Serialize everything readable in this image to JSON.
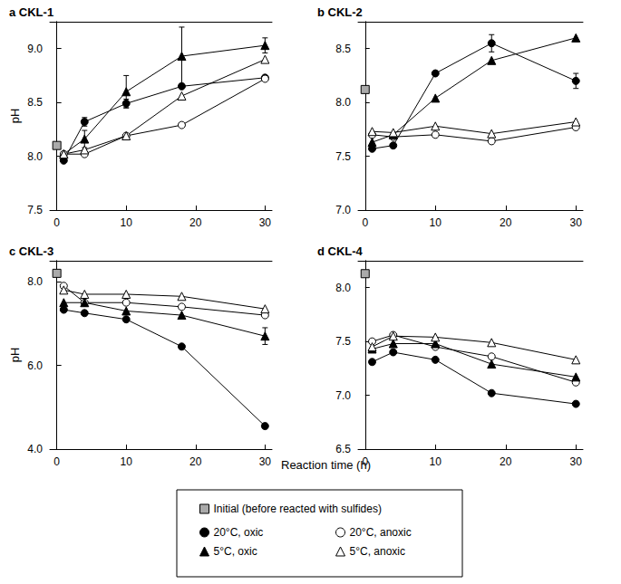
{
  "chart_data": [
    {
      "type": "line",
      "title": "a CKL-1",
      "ylabel": "pH",
      "xlim": [
        -1,
        31
      ],
      "xticks": [
        0,
        10,
        20,
        30
      ],
      "ylim": [
        7.5,
        9.25
      ],
      "yticks": [
        {
          "value": 7.5,
          "label": "7.5"
        },
        {
          "value": 8,
          "label": "8.0"
        },
        {
          "value": 8.5,
          "label": "8.5"
        },
        {
          "value": 9,
          "label": "9.0"
        }
      ],
      "grid": false,
      "series": [
        {
          "name": "Initial (before reacted with sulfides)",
          "color": "#aaaaaa",
          "marker": "square",
          "line_style": "none",
          "x": [
            0
          ],
          "values": [
            8.1
          ]
        },
        {
          "name": "20°C, oxic",
          "color": "#000000",
          "marker": "circle",
          "line_style": "solid",
          "x": [
            1,
            4,
            10,
            18,
            30
          ],
          "values": [
            7.96,
            8.32,
            8.49,
            8.65,
            8.73
          ],
          "errors": [
            null,
            0.04,
            0.04,
            null,
            null
          ]
        },
        {
          "name": "20°C, anoxic",
          "color": "#000000",
          "marker": "circle-open",
          "line_style": "solid",
          "x": [
            1,
            4,
            10,
            18,
            30
          ],
          "values": [
            8.02,
            8.02,
            8.19,
            8.29,
            8.72
          ]
        },
        {
          "name": "5°C, oxic",
          "color": "#000000",
          "marker": "triangle",
          "line_style": "solid",
          "x": [
            1,
            4,
            10,
            18,
            30
          ],
          "values": [
            8.02,
            8.16,
            8.6,
            8.93,
            9.03
          ],
          "errors": [
            null,
            0.08,
            0.15,
            0.27,
            0.07
          ]
        },
        {
          "name": "5°C, anoxic",
          "color": "#000000",
          "marker": "triangle-open",
          "line_style": "solid",
          "x": [
            1,
            4,
            10,
            18,
            30
          ],
          "values": [
            8.02,
            8.06,
            8.19,
            8.56,
            8.9
          ]
        }
      ]
    },
    {
      "type": "line",
      "title": "b CKL-2",
      "xlim": [
        -1,
        31
      ],
      "xticks": [
        0,
        10,
        20,
        30
      ],
      "ylim": [
        7.0,
        8.75
      ],
      "yticks": [
        {
          "value": 7,
          "label": "7.0"
        },
        {
          "value": 7.5,
          "label": "7.5"
        },
        {
          "value": 8,
          "label": "8.0"
        },
        {
          "value": 8.5,
          "label": "8.5"
        }
      ],
      "grid": false,
      "series": [
        {
          "name": "Initial (before reacted with sulfides)",
          "color": "#aaaaaa",
          "marker": "square",
          "line_style": "none",
          "x": [
            0
          ],
          "values": [
            8.12
          ]
        },
        {
          "name": "20°C, oxic",
          "color": "#000000",
          "marker": "circle",
          "line_style": "solid",
          "x": [
            1,
            4,
            10,
            18,
            30
          ],
          "values": [
            7.57,
            7.6,
            8.27,
            8.55,
            8.2
          ],
          "errors": [
            null,
            null,
            null,
            0.08,
            0.07
          ]
        },
        {
          "name": "20°C, anoxic",
          "color": "#000000",
          "marker": "circle-open",
          "line_style": "solid",
          "x": [
            1,
            4,
            10,
            18,
            30
          ],
          "values": [
            7.7,
            7.68,
            7.7,
            7.64,
            7.77
          ]
        },
        {
          "name": "5°C, oxic",
          "color": "#000000",
          "marker": "triangle",
          "line_style": "solid",
          "x": [
            1,
            4,
            10,
            18,
            30
          ],
          "values": [
            7.63,
            7.7,
            8.04,
            8.39,
            8.6
          ]
        },
        {
          "name": "5°C, anoxic",
          "color": "#000000",
          "marker": "triangle-open",
          "line_style": "solid",
          "x": [
            1,
            4,
            10,
            18,
            30
          ],
          "values": [
            7.73,
            7.72,
            7.78,
            7.71,
            7.82
          ]
        }
      ]
    },
    {
      "type": "line",
      "title": "c CKL-3",
      "ylabel": "pH",
      "xlim": [
        -1,
        31
      ],
      "xticks": [
        0,
        10,
        20,
        30
      ],
      "ylim": [
        4.0,
        8.5
      ],
      "yticks": [
        {
          "value": 4,
          "label": "4.0"
        },
        {
          "value": 6,
          "label": "6.0"
        },
        {
          "value": 8,
          "label": "8.0"
        }
      ],
      "grid": false,
      "series": [
        {
          "name": "Initial (before reacted with sulfides)",
          "color": "#aaaaaa",
          "marker": "square",
          "line_style": "none",
          "x": [
            0
          ],
          "values": [
            8.2
          ]
        },
        {
          "name": "20°C, oxic",
          "color": "#000000",
          "marker": "circle",
          "line_style": "solid",
          "x": [
            1,
            4,
            10,
            18,
            30
          ],
          "values": [
            7.33,
            7.25,
            7.1,
            6.45,
            4.55
          ]
        },
        {
          "name": "20°C, anoxic",
          "color": "#000000",
          "marker": "circle-open",
          "line_style": "solid",
          "x": [
            1,
            4,
            10,
            18,
            30
          ],
          "values": [
            7.9,
            7.5,
            7.5,
            7.4,
            7.2
          ]
        },
        {
          "name": "5°C, oxic",
          "color": "#000000",
          "marker": "triangle",
          "line_style": "solid",
          "x": [
            1,
            4,
            10,
            18,
            30
          ],
          "values": [
            7.5,
            7.5,
            7.3,
            7.2,
            6.7
          ],
          "errors": [
            null,
            null,
            null,
            null,
            0.2
          ]
        },
        {
          "name": "5°C, anoxic",
          "color": "#000000",
          "marker": "triangle-open",
          "line_style": "solid",
          "x": [
            1,
            4,
            10,
            18,
            30
          ],
          "values": [
            7.8,
            7.7,
            7.7,
            7.65,
            7.35
          ]
        }
      ]
    },
    {
      "type": "line",
      "title": "d CKL-4",
      "xlim": [
        -1,
        31
      ],
      "xticks": [
        0,
        10,
        20,
        30
      ],
      "ylim": [
        6.5,
        8.25
      ],
      "yticks": [
        {
          "value": 6.5,
          "label": "6.5"
        },
        {
          "value": 7,
          "label": "7.0"
        },
        {
          "value": 7.5,
          "label": "7.5"
        },
        {
          "value": 8,
          "label": "8.0"
        }
      ],
      "grid": false,
      "series": [
        {
          "name": "Initial (before reacted with sulfides)",
          "color": "#aaaaaa",
          "marker": "square",
          "line_style": "none",
          "x": [
            0
          ],
          "values": [
            8.13
          ]
        },
        {
          "name": "20°C, oxic",
          "color": "#000000",
          "marker": "circle",
          "line_style": "solid",
          "x": [
            1,
            4,
            10,
            18,
            30
          ],
          "values": [
            7.31,
            7.4,
            7.33,
            7.02,
            6.92
          ]
        },
        {
          "name": "20°C, anoxic",
          "color": "#000000",
          "marker": "circle-open",
          "line_style": "solid",
          "x": [
            1,
            4,
            10,
            18,
            30
          ],
          "values": [
            7.5,
            7.56,
            7.45,
            7.36,
            7.12
          ]
        },
        {
          "name": "5°C, oxic",
          "color": "#000000",
          "marker": "triangle",
          "line_style": "solid",
          "x": [
            1,
            4,
            10,
            18,
            30
          ],
          "values": [
            7.43,
            7.48,
            7.48,
            7.29,
            7.17
          ]
        },
        {
          "name": "5°C, anoxic",
          "color": "#000000",
          "marker": "triangle-open",
          "line_style": "solid",
          "x": [
            1,
            4,
            10,
            18,
            30
          ],
          "values": [
            7.45,
            7.55,
            7.54,
            7.49,
            7.33
          ]
        }
      ]
    }
  ],
  "xlabel": "Reaction time (h)"
}
